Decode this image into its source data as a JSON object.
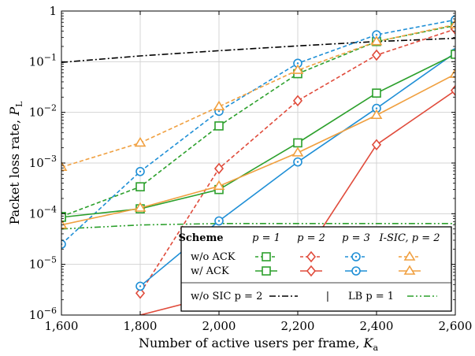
{
  "chart_data": {
    "type": "line",
    "xlabel": "Number of active users per frame, ",
    "xlabel_symbol": "K",
    "xlabel_sub": "a",
    "ylabel": "Packet loss rate, ",
    "ylabel_symbol": "P",
    "ylabel_sub": "L",
    "x_scale": "linear",
    "y_scale": "log",
    "xlim": [
      1600,
      2600
    ],
    "ylim": [
      1e-06,
      1
    ],
    "x_ticks": [
      1600,
      1800,
      2000,
      2200,
      2400,
      2600
    ],
    "x_tick_labels": [
      "1,600",
      "1,800",
      "2,000",
      "2,200",
      "2,400",
      "2,600"
    ],
    "y_ticks": [
      1e-06,
      1e-05,
      0.0001,
      0.001,
      0.01,
      0.1,
      1
    ],
    "y_tick_labels": [
      {
        "base": "10",
        "exp": "−6"
      },
      {
        "base": "10",
        "exp": "−5"
      },
      {
        "base": "10",
        "exp": "−4"
      },
      {
        "base": "10",
        "exp": "−3"
      },
      {
        "base": "10",
        "exp": "−2"
      },
      {
        "base": "10",
        "exp": "−1"
      },
      {
        "base": "1",
        "exp": ""
      }
    ],
    "grid": true,
    "x": [
      1600,
      1800,
      2000,
      2200,
      2400,
      2600
    ],
    "series": [
      {
        "key": "woack_p1",
        "color": "#2ca02c",
        "dash": "dashed",
        "marker": "square",
        "values": [
          8.8e-05,
          0.00034,
          0.0054,
          0.058,
          0.25,
          0.52
        ]
      },
      {
        "key": "woack_p2",
        "color": "#e04b3b",
        "dash": "dashed",
        "marker": "diamond",
        "x": [
          1800,
          2000,
          2200,
          2400,
          2600
        ],
        "values": [
          2.7e-06,
          0.00078,
          0.017,
          0.135,
          0.44
        ]
      },
      {
        "key": "woack_p3",
        "color": "#1f8fd6",
        "dash": "dashed",
        "marker": "circle",
        "values": [
          2.5e-05,
          0.00068,
          0.0105,
          0.093,
          0.34,
          0.67
        ]
      },
      {
        "key": "woack_isic",
        "color": "#f0a040",
        "dash": "dashed",
        "marker": "triangle",
        "values": [
          0.00083,
          0.0025,
          0.013,
          0.068,
          0.25,
          0.54
        ]
      },
      {
        "key": "wack_p1",
        "color": "#2ca02c",
        "dash": "solid",
        "marker": "square",
        "values": [
          8.5e-05,
          0.000125,
          0.0003,
          0.0025,
          0.024,
          0.14
        ]
      },
      {
        "key": "wack_p2",
        "color": "#e04b3b",
        "dash": "solid",
        "marker": "diamond",
        "x": [
          1800,
          2000,
          2200,
          2400,
          2600
        ],
        "values": [
          1e-06,
          2.5e-06,
          9.5e-06,
          0.0023,
          0.027
        ],
        "hidden_markers": [
          0,
          1
        ]
      },
      {
        "key": "wack_p3",
        "color": "#1f8fd6",
        "dash": "solid",
        "marker": "circle",
        "x": [
          1800,
          2000,
          2200,
          2400,
          2600
        ],
        "values": [
          3.7e-06,
          7.2e-05,
          0.00105,
          0.012,
          0.15
        ]
      },
      {
        "key": "wack_isic",
        "color": "#f0a040",
        "dash": "solid",
        "marker": "triangle",
        "values": [
          6e-05,
          0.00013,
          0.00035,
          0.0016,
          0.0088,
          0.057
        ]
      },
      {
        "key": "wosic_p2",
        "color": "#000000",
        "dash": "dashdot",
        "marker": "none",
        "values": [
          0.097,
          0.13,
          0.165,
          0.205,
          0.25,
          0.29
        ]
      },
      {
        "key": "lb_p1",
        "color": "#2ca02c",
        "dash": "dashdotdot",
        "marker": "none",
        "values": [
          5e-05,
          6e-05,
          6.4e-05,
          6.4e-05,
          6.4e-05,
          6.4e-05
        ]
      }
    ],
    "legend": {
      "position": "bottom-right",
      "header": [
        "Scheme",
        "p = 1",
        "p = 2",
        "p = 3",
        "I-SIC, p = 2"
      ],
      "rows": [
        {
          "label": "w/o ACK",
          "series": [
            "woack_p1",
            "woack_p2",
            "woack_p3",
            "woack_isic"
          ]
        },
        {
          "label": "w/  ACK",
          "series": [
            "wack_p1",
            "wack_p2",
            "wack_p3",
            "wack_isic"
          ]
        }
      ],
      "footer": {
        "wosic_label": "w/o SIC p = 2",
        "separator": "|",
        "lb_label": "LB p = 1",
        "wosic_series": "wosic_p2",
        "lb_series": "lb_p1"
      }
    }
  }
}
